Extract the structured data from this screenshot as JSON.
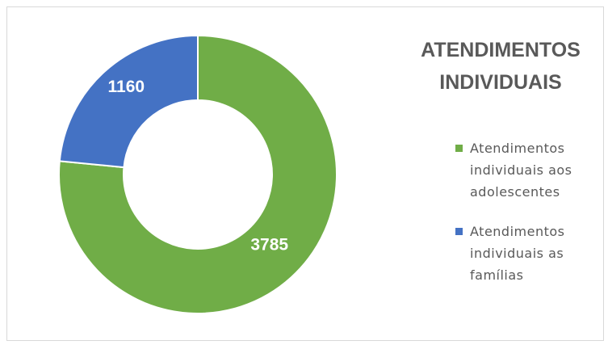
{
  "chart_data": {
    "type": "pie",
    "title": "ATENDIMENTOS INDIVIDUAIS",
    "categories": [
      "Atendimentos individuais aos adolescentes",
      "Atendimentos individuais as famílias"
    ],
    "values": [
      3785,
      1160
    ],
    "colors": [
      "#70ad47",
      "#4472c4"
    ],
    "donut": true,
    "legend": "right"
  }
}
